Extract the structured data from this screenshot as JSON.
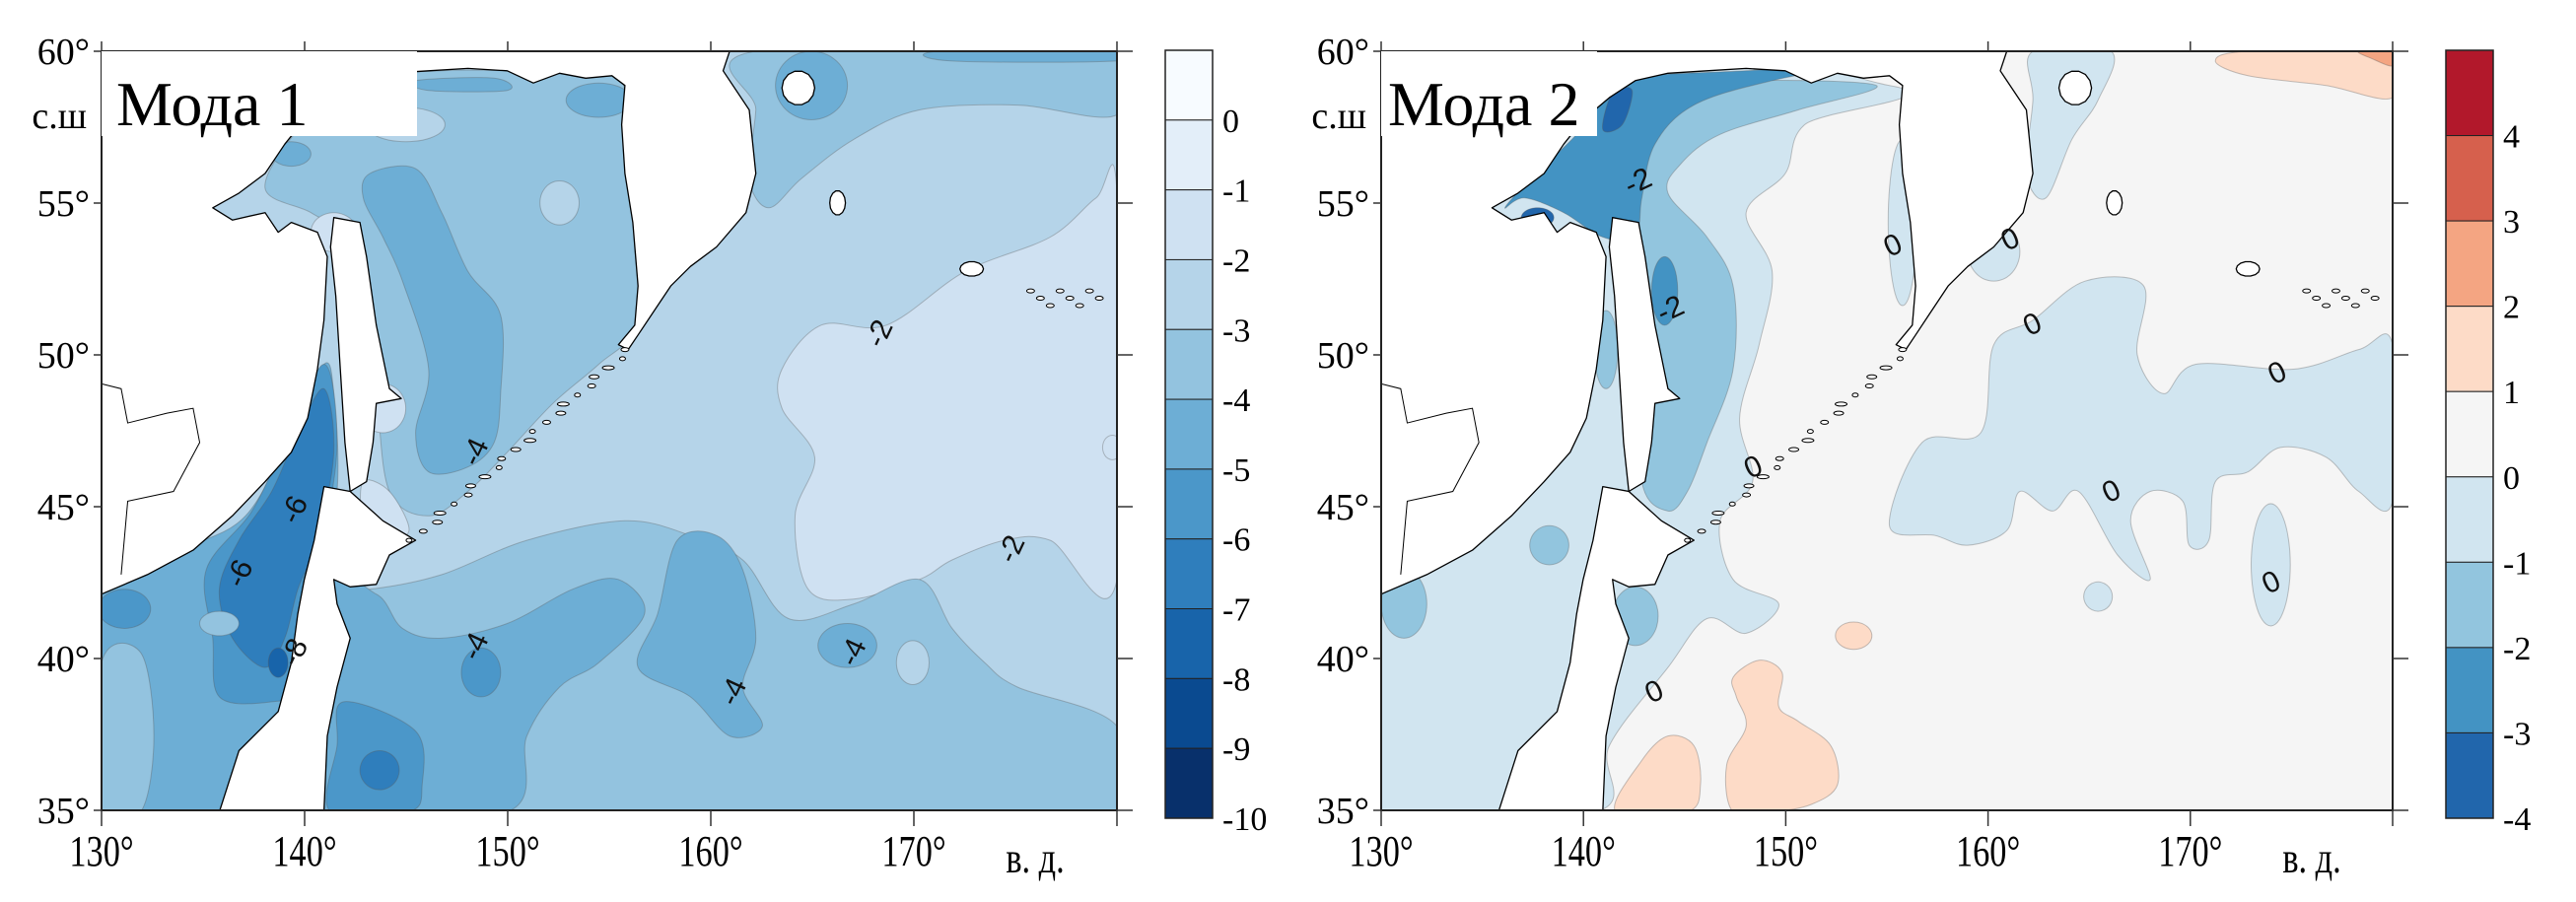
{
  "chart_data": [
    {
      "type": "heatmap",
      "title": "Мода 1",
      "xlabel": "в. д.",
      "ylabel": "с.ш",
      "xlim": [
        130,
        180
      ],
      "ylim": [
        35,
        60
      ],
      "x_ticks": [
        130,
        140,
        150,
        160,
        170,
        180
      ],
      "x_tick_labels": [
        "130°",
        "140°",
        "150°",
        "160°",
        "170°"
      ],
      "y_ticks": [
        60,
        55,
        50,
        45,
        40,
        35
      ],
      "y_tick_labels": [
        "60°",
        "55°",
        "50°",
        "45°",
        "40°",
        "35°"
      ],
      "grid": false,
      "colorbar": {
        "levels": [
          1,
          0,
          -1,
          -2,
          -3,
          -4,
          -5,
          -6,
          -7,
          -8,
          -9,
          -10
        ],
        "tick_labels": [
          "0",
          "-1",
          "-2",
          "-3",
          "-4",
          "-5",
          "-6",
          "-7",
          "-8",
          "-9",
          "-10"
        ],
        "colors": [
          "#f7fbff",
          "#e3eef9",
          "#cfe1f2",
          "#b5d4e9",
          "#93c3df",
          "#6daed5",
          "#4b97c9",
          "#2f7ebc",
          "#1864aa",
          "#0a4a90",
          "#08306b"
        ]
      },
      "contour_labels": [
        {
          "text": "-4",
          "lon": 148.4,
          "lat": 46.8
        },
        {
          "text": "-6",
          "lon": 139.5,
          "lat": 44.9
        },
        {
          "text": "-6",
          "lon": 136.8,
          "lat": 42.8
        },
        {
          "text": "-8",
          "lon": 139.5,
          "lat": 40.2
        },
        {
          "text": "-4",
          "lon": 148.4,
          "lat": 40.4
        },
        {
          "text": "-4",
          "lon": 161.1,
          "lat": 38.9
        },
        {
          "text": "-4",
          "lon": 167.0,
          "lat": 40.2
        },
        {
          "text": "-2",
          "lon": 168.3,
          "lat": 50.7
        },
        {
          "text": "-2",
          "lon": 174.8,
          "lat": 43.6
        }
      ]
    },
    {
      "type": "heatmap",
      "title": "Мода 2",
      "xlabel": "в. д.",
      "ylabel": "с.ш",
      "xlim": [
        130,
        180
      ],
      "ylim": [
        35,
        60
      ],
      "x_ticks": [
        130,
        140,
        150,
        160,
        170,
        180
      ],
      "x_tick_labels": [
        "130°",
        "140°",
        "150°",
        "160°",
        "170°"
      ],
      "y_ticks": [
        60,
        55,
        50,
        45,
        40,
        35
      ],
      "y_tick_labels": [
        "60°",
        "55°",
        "50°",
        "45°",
        "40°",
        "35°"
      ],
      "grid": false,
      "colorbar": {
        "levels": [
          5,
          4,
          3,
          2,
          1,
          0,
          -1,
          -2,
          -3,
          -4
        ],
        "tick_labels": [
          "4",
          "3",
          "2",
          "1",
          "0",
          "-1",
          "-2",
          "-3",
          "-4"
        ],
        "colors": [
          "#b2182b",
          "#d6604d",
          "#f4a582",
          "#fddbc7",
          "#f5f5f5",
          "#d1e5f0",
          "#92c5de",
          "#4393c3",
          "#2166ac"
        ]
      },
      "contour_labels": [
        {
          "text": "-2",
          "lon": 142.7,
          "lat": 55.7
        },
        {
          "text": "-2",
          "lon": 144.3,
          "lat": 51.5
        },
        {
          "text": "0",
          "lon": 155.3,
          "lat": 53.6
        },
        {
          "text": "0",
          "lon": 161.1,
          "lat": 53.8
        },
        {
          "text": "0",
          "lon": 162.2,
          "lat": 51.0
        },
        {
          "text": "0",
          "lon": 148.4,
          "lat": 46.3
        },
        {
          "text": "0",
          "lon": 174.3,
          "lat": 49.4
        },
        {
          "text": "0",
          "lon": 166.1,
          "lat": 45.5
        },
        {
          "text": "0",
          "lon": 174.0,
          "lat": 42.5
        },
        {
          "text": "0",
          "lon": 143.5,
          "lat": 38.9
        }
      ]
    }
  ]
}
